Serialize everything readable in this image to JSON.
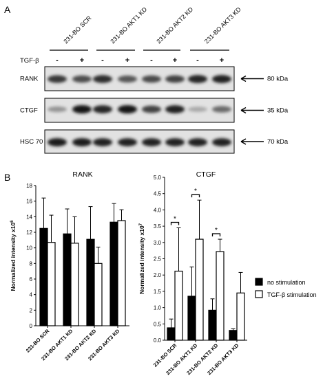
{
  "panels": {
    "a": "A",
    "b": "B"
  },
  "blot": {
    "groups": [
      "231-BO SCR",
      "231-BO AKT1 KD",
      "231-BO AKT2 KD",
      "231-BO AKT3 KD"
    ],
    "treatment_label": "TGF-β",
    "treatment_signs": [
      "-",
      "+",
      "-",
      "+",
      "-",
      "+",
      "-",
      "+"
    ],
    "rows": [
      {
        "name": "RANK",
        "size": "80 kDa",
        "intensity": [
          0.8,
          0.7,
          0.85,
          0.65,
          0.72,
          0.75,
          0.88,
          0.9
        ]
      },
      {
        "name": "CTGF",
        "size": "35 kDa",
        "intensity": [
          0.35,
          0.95,
          0.88,
          0.95,
          0.75,
          0.9,
          0.25,
          0.55
        ]
      },
      {
        "name": "HSC 70",
        "size": "70 kDa",
        "intensity": [
          0.92,
          0.92,
          0.9,
          0.9,
          0.9,
          0.9,
          0.9,
          0.9
        ]
      }
    ]
  },
  "chart_data": [
    {
      "type": "bar",
      "title": "RANK",
      "ylabel": "Normalized intensity x10",
      "ylabel_exp": "6",
      "categories": [
        "231-BO SCR",
        "231-BO AKT1 KD",
        "231-BO AKT2 KD",
        "231-BO AKT3 KD"
      ],
      "ylim": [
        0,
        18
      ],
      "yticks": [
        "0",
        "2",
        "4",
        "6",
        "8",
        "10",
        "12",
        "14",
        "16",
        "18"
      ],
      "series": [
        {
          "name": "no stimulation",
          "color": "#000000",
          "values": [
            12.5,
            11.8,
            11.1,
            13.3
          ],
          "errors": [
            3.9,
            3.2,
            4.2,
            2.4
          ]
        },
        {
          "name": "TGF-β stimulation",
          "color": "#ffffff",
          "values": [
            10.7,
            10.6,
            8.0,
            13.5
          ],
          "errors": [
            3.5,
            3.4,
            2.1,
            1.4
          ]
        }
      ]
    },
    {
      "type": "bar",
      "title": "CTGF",
      "ylabel": "Normalized intensity x10",
      "ylabel_exp": "7",
      "categories": [
        "231-BO SCR",
        "231-BO AKT1 KD",
        "231-BO AKT2 KD",
        "231-BO AKT3 KD"
      ],
      "ylim": [
        0,
        5.0
      ],
      "yticks": [
        "0.0",
        "0.5",
        "1.0",
        "1.5",
        "2.0",
        "2.5",
        "3.0",
        "3.5",
        "4.0",
        "4.5",
        "5.0"
      ],
      "series": [
        {
          "name": "no stimulation",
          "color": "#000000",
          "values": [
            0.38,
            1.35,
            0.92,
            0.3
          ],
          "errors": [
            0.27,
            0.9,
            0.35,
            0.05
          ]
        },
        {
          "name": "TGF-β stimulation",
          "color": "#ffffff",
          "values": [
            2.12,
            3.1,
            2.72,
            1.45
          ],
          "errors": [
            1.33,
            1.2,
            0.38,
            0.63
          ]
        }
      ],
      "significance": [
        {
          "group": 0,
          "label": "*"
        },
        {
          "group": 1,
          "label": "*"
        },
        {
          "group": 2,
          "label": "*"
        }
      ],
      "legend_position": "right"
    }
  ]
}
